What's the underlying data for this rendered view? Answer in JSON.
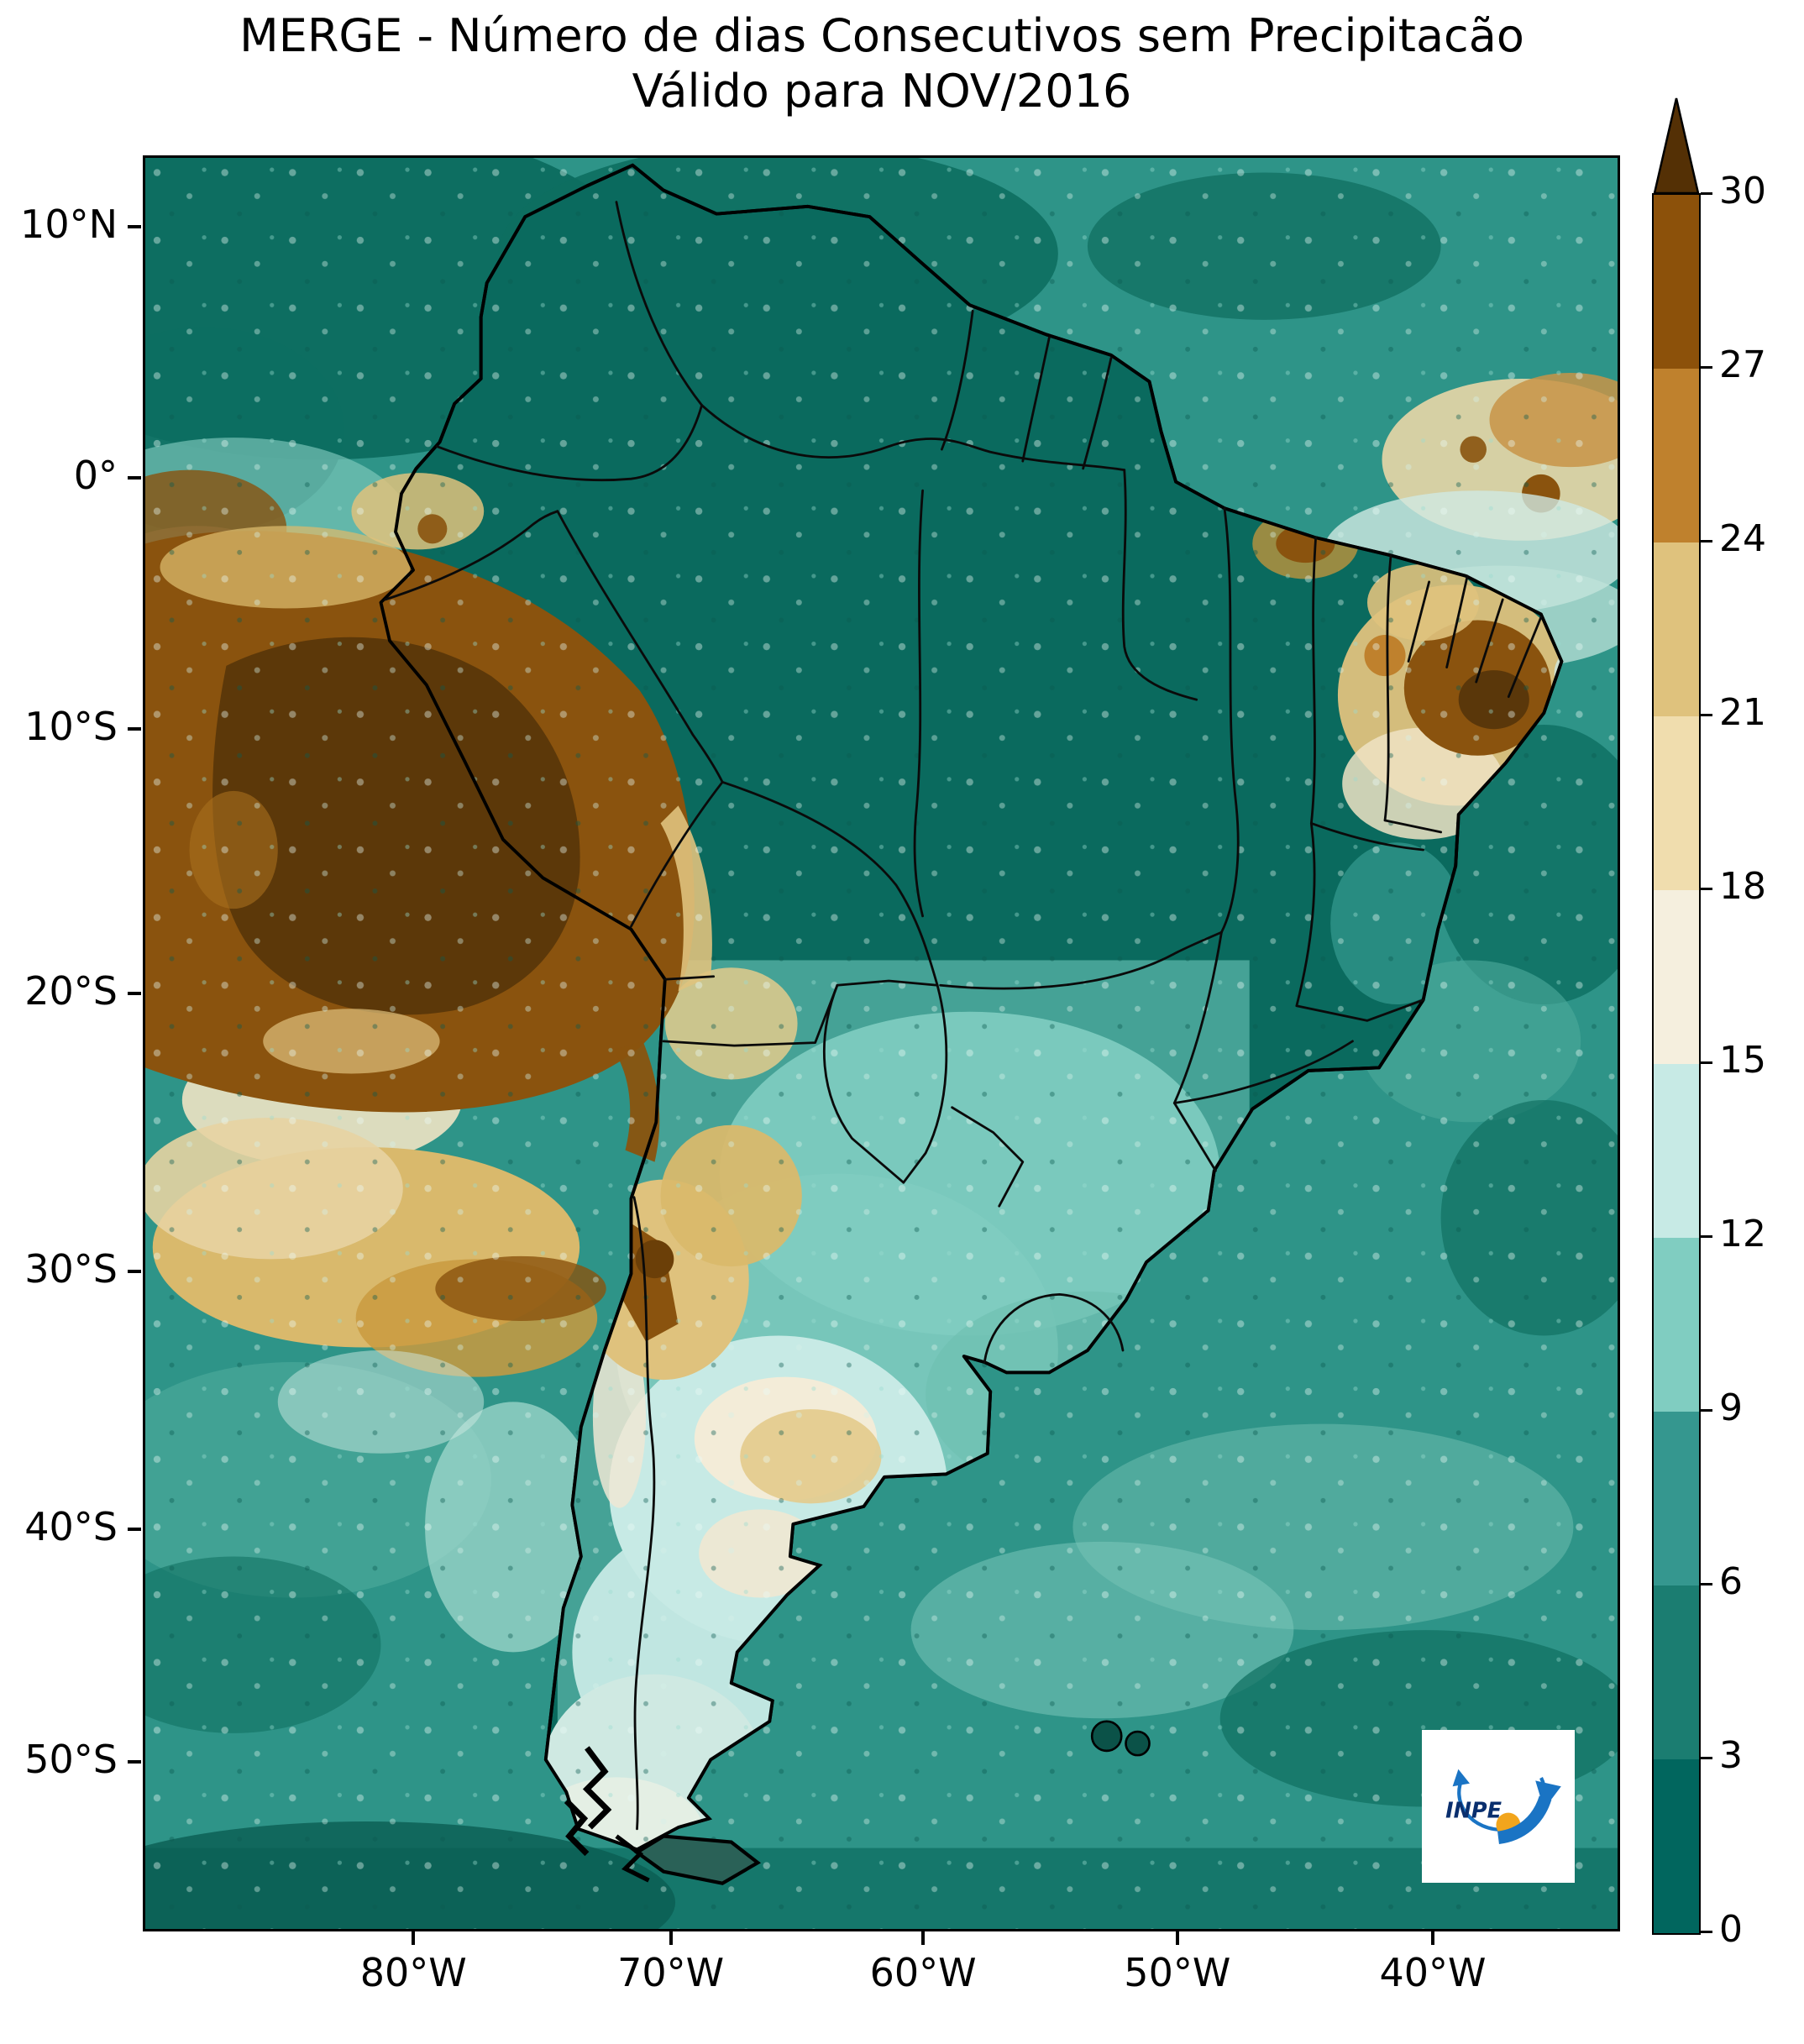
{
  "title": {
    "line1": "MERGE - Número de dias Consecutivos sem Precipitacão",
    "line2": "Válido para NOV/2016"
  },
  "axes": {
    "y_ticks": [
      "10°N",
      "0°",
      "10°S",
      "20°S",
      "30°S",
      "40°S",
      "50°S"
    ],
    "x_ticks": [
      "80°W",
      "70°W",
      "60°W",
      "50°W",
      "40°W"
    ]
  },
  "colorbar": {
    "tick_labels": [
      "0",
      "3",
      "6",
      "9",
      "12",
      "15",
      "18",
      "21",
      "24",
      "27",
      "30"
    ],
    "segment_colors": [
      "#01665e",
      "#1b7d71",
      "#35978f",
      "#80cdc1",
      "#c7eae5",
      "#f5efde",
      "#f0ddae",
      "#dfc27d",
      "#bf812d",
      "#8c510a"
    ],
    "over_color": "#543005"
  },
  "logo": {
    "text": "INPE"
  },
  "map_palette": {
    "ocean_base": "#2e9488",
    "land_dark": "#0a6a5e",
    "light_teal": "#80cdc1",
    "pale_cyan": "#c7eae5",
    "cream": "#f3ecd8",
    "tan": "#dfc27d",
    "brown": "#8a530e",
    "dark_brown": "#5a370a"
  },
  "chart_data": {
    "type": "heatmap",
    "title": "MERGE - Número de dias Consecutivos sem Precipitacão",
    "subtitle": "Válido para NOV/2016",
    "variable": "Número de dias consecutivos sem precipitação",
    "period": "NOV/2016",
    "scale": {
      "min": 0,
      "max": 30,
      "step": 3,
      "extend_max": true
    },
    "x_ticks_deg_west": [
      80,
      70,
      60,
      50,
      40
    ],
    "y_ticks_deg": [
      10,
      0,
      -10,
      -20,
      -30,
      -40,
      -50
    ],
    "legend_position": "right",
    "grid": false,
    "regions_estimated": [
      {
        "area": "Amazonia / Norte do Brasil",
        "days": "0-6"
      },
      {
        "area": "Oceano Pacifico ao largo do Peru",
        "days": "24-30+"
      },
      {
        "area": "Litoral do Peru e Andes (5S-20S)",
        "days": "24-30+"
      },
      {
        "area": "Interior do Nordeste do Brasil",
        "days": "21-30"
      },
      {
        "area": "Andes argentinos (28S-33S)",
        "days": "18-27"
      },
      {
        "area": "Centro da Argentina",
        "days": "9-15"
      },
      {
        "area": "Sul do Brasil / Paraguai",
        "days": "6-12"
      },
      {
        "area": "Oceano Atlantico",
        "days": "3-9"
      },
      {
        "area": "Patagonia",
        "days": "9-15"
      }
    ]
  }
}
